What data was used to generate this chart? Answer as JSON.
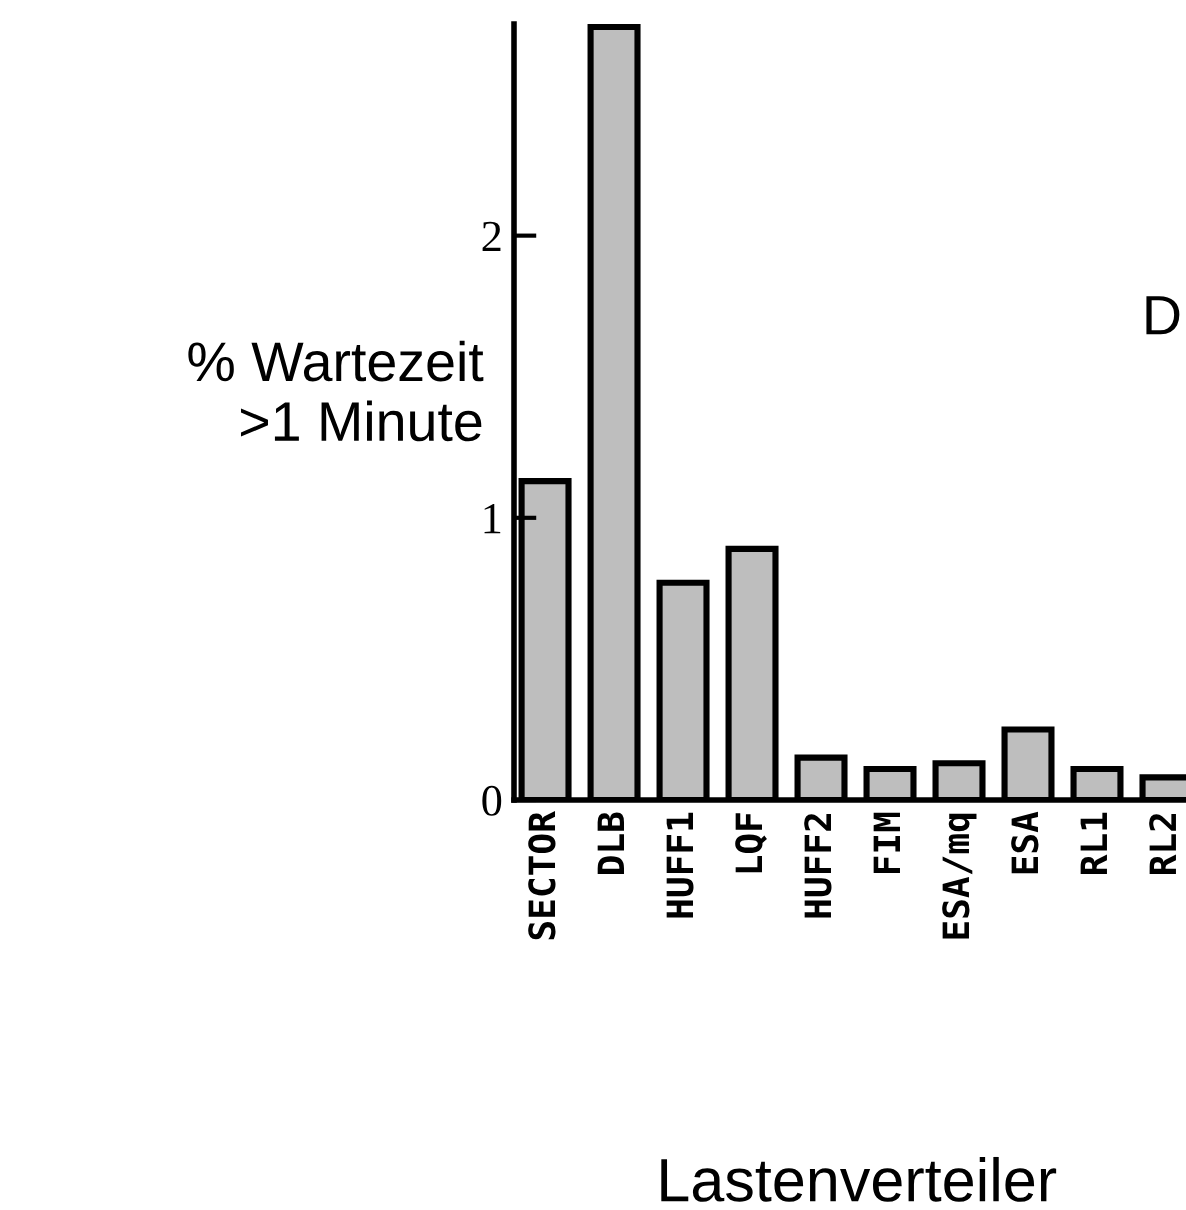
{
  "chart_data": {
    "type": "bar",
    "ylabel": "% Wartezeit\n>1 Minute",
    "xlabel": "Lastenverteiler",
    "categories": [
      "SECTOR",
      "DLB",
      "HUFF1",
      "LQF",
      "HUFF2",
      "FIM",
      "ESA/mq",
      "ESA",
      "RL1",
      "RL2"
    ],
    "values": [
      1.13,
      2.74,
      0.77,
      0.89,
      0.15,
      0.11,
      0.13,
      0.25,
      0.11,
      0.08
    ],
    "color": "#bebebe",
    "ylim": [
      0,
      2.75
    ],
    "yticks": [
      0,
      1,
      2
    ],
    "grid": false,
    "annotations": [
      "D"
    ]
  }
}
